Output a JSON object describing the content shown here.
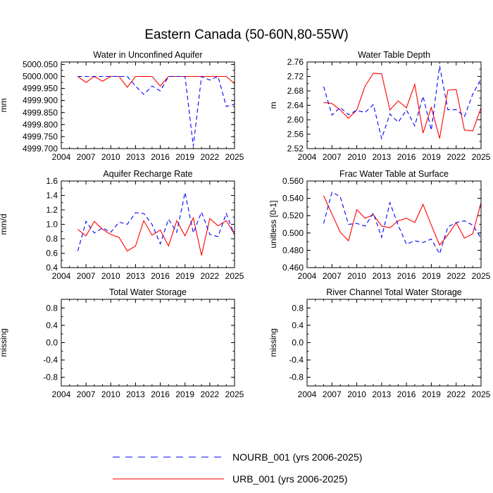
{
  "figure_title": "Eastern Canada (50-60N,80-55W)",
  "colors": {
    "urb": "#ff0000",
    "nourb": "#0000ff",
    "axis": "#000000"
  },
  "legend": [
    {
      "label": "NOURB_001 (yrs 2006-2025)",
      "style": "dashed",
      "color": "#0000ff"
    },
    {
      "label": "URB_001 (yrs 2006-2025)",
      "style": "solid",
      "color": "#ff0000"
    }
  ],
  "chart_data": [
    {
      "type": "line",
      "title": "Water in Unconfined Aquifer",
      "ylabel": "mm",
      "xlim": [
        2004,
        2025
      ],
      "ylim": [
        4999.7,
        5000.06
      ],
      "xticks": [
        "2004",
        "2007",
        "2010",
        "2013",
        "2016",
        "2019",
        "2022",
        "2025"
      ],
      "yticks": [
        "5000.050",
        "5000.000",
        "4999.950",
        "4999.900",
        "4999.850",
        "4999.800",
        "4999.750",
        "4999.700"
      ],
      "x": [
        2006,
        2007,
        2008,
        2009,
        2010,
        2011,
        2012,
        2013,
        2014,
        2015,
        2016,
        2017,
        2018,
        2019,
        2020,
        2021,
        2022,
        2023,
        2024,
        2025
      ],
      "series": [
        {
          "name": "URB_001",
          "values": [
            5000.0,
            4999.975,
            5000.0,
            4999.98,
            5000.0,
            5000.0,
            4999.955,
            5000.0,
            5000.0,
            5000.0,
            4999.96,
            5000.0,
            5000.0,
            5000.0,
            5000.0,
            5000.0,
            5000.0,
            5000.0,
            5000.0,
            4999.97
          ]
        },
        {
          "name": "NOURB_001",
          "values": [
            5000.0,
            5000.0,
            5000.0,
            5000.0,
            5000.0,
            5000.0,
            5000.0,
            4999.96,
            4999.925,
            4999.96,
            4999.94,
            5000.0,
            5000.0,
            5000.0,
            4999.71,
            5000.0,
            4999.985,
            5000.0,
            4999.875,
            4999.885
          ]
        }
      ]
    },
    {
      "type": "line",
      "title": "Water Table Depth",
      "ylabel": "m",
      "xlim": [
        2004,
        2025
      ],
      "ylim": [
        2.52,
        2.76
      ],
      "xticks": [
        "2004",
        "2007",
        "2010",
        "2013",
        "2016",
        "2019",
        "2022",
        "2025"
      ],
      "yticks": [
        "2.76",
        "2.72",
        "2.68",
        "2.64",
        "2.60",
        "2.56",
        "2.52"
      ],
      "x": [
        2006,
        2007,
        2008,
        2009,
        2010,
        2011,
        2012,
        2013,
        2014,
        2015,
        2016,
        2017,
        2018,
        2019,
        2020,
        2021,
        2022,
        2023,
        2024,
        2025
      ],
      "series": [
        {
          "name": "URB_001",
          "values": [
            2.648,
            2.645,
            2.627,
            2.604,
            2.627,
            2.693,
            2.729,
            2.727,
            2.627,
            2.652,
            2.633,
            2.698,
            2.563,
            2.634,
            2.548,
            2.682,
            2.684,
            2.571,
            2.569,
            2.633
          ]
        },
        {
          "name": "NOURB_001",
          "values": [
            2.692,
            2.613,
            2.634,
            2.614,
            2.626,
            2.62,
            2.642,
            2.548,
            2.616,
            2.593,
            2.627,
            2.583,
            2.665,
            2.571,
            2.749,
            2.628,
            2.628,
            2.609,
            2.671,
            2.713
          ]
        }
      ]
    },
    {
      "type": "line",
      "title": "Aquifer Recharge Rate",
      "ylabel": "mm/d",
      "xlim": [
        2004,
        2025
      ],
      "ylim": [
        0.4,
        1.6
      ],
      "xticks": [
        "2004",
        "2007",
        "2010",
        "2013",
        "2016",
        "2019",
        "2022",
        "2025"
      ],
      "yticks": [
        "1.6",
        "1.4",
        "1.2",
        "1.0",
        "0.8",
        "0.6",
        "0.4"
      ],
      "x": [
        2006,
        2007,
        2008,
        2009,
        2010,
        2011,
        2012,
        2013,
        2014,
        2015,
        2016,
        2017,
        2018,
        2019,
        2020,
        2021,
        2022,
        2023,
        2024,
        2025
      ],
      "series": [
        {
          "name": "URB_001",
          "values": [
            0.93,
            0.84,
            1.04,
            0.93,
            0.86,
            0.82,
            0.63,
            0.7,
            1.05,
            0.85,
            0.92,
            0.7,
            1.05,
            0.84,
            1.09,
            0.57,
            1.08,
            0.98,
            1.05,
            0.86
          ]
        },
        {
          "name": "NOURB_001",
          "values": [
            0.63,
            1.04,
            0.88,
            0.95,
            0.89,
            1.03,
            1.0,
            1.16,
            1.15,
            1.0,
            0.73,
            1.07,
            0.89,
            1.44,
            0.88,
            1.17,
            0.86,
            0.83,
            1.15,
            0.85
          ]
        }
      ]
    },
    {
      "type": "line",
      "title": "Frac Water Table at Surface",
      "ylabel": "unitless [0-1]",
      "xlim": [
        2004,
        2025
      ],
      "ylim": [
        0.46,
        0.56
      ],
      "xticks": [
        "2004",
        "2007",
        "2010",
        "2013",
        "2016",
        "2019",
        "2022",
        "2025"
      ],
      "yticks": [
        "0.560",
        "0.540",
        "0.520",
        "0.500",
        "0.480",
        "0.460"
      ],
      "x": [
        2006,
        2007,
        2008,
        2009,
        2010,
        2011,
        2012,
        2013,
        2014,
        2015,
        2016,
        2017,
        2018,
        2019,
        2020,
        2021,
        2022,
        2023,
        2024,
        2025
      ],
      "series": [
        {
          "name": "URB_001",
          "values": [
            0.543,
            0.522,
            0.501,
            0.491,
            0.527,
            0.517,
            0.521,
            0.508,
            0.506,
            0.514,
            0.517,
            0.512,
            0.533,
            0.509,
            0.486,
            0.498,
            0.512,
            0.494,
            0.499,
            0.535
          ]
        },
        {
          "name": "NOURB_001",
          "values": [
            0.511,
            0.547,
            0.542,
            0.51,
            0.511,
            0.508,
            0.523,
            0.495,
            0.535,
            0.509,
            0.487,
            0.491,
            0.489,
            0.493,
            0.476,
            0.507,
            0.512,
            0.514,
            0.509,
            0.494
          ]
        }
      ]
    },
    {
      "type": "line",
      "title": "Total Water Storage",
      "ylabel": "missing",
      "xlim": [
        2004,
        2025
      ],
      "ylim": [
        -1.0,
        1.0
      ],
      "xticks": [
        "2004",
        "2007",
        "2010",
        "2013",
        "2016",
        "2019",
        "2022",
        "2025"
      ],
      "yticks": [
        "0.8",
        "0.4",
        "0.0",
        "-0.4",
        "-0.8"
      ],
      "x": [],
      "series": []
    },
    {
      "type": "line",
      "title": "River Channel Total Water Storage",
      "ylabel": "missing",
      "xlim": [
        2004,
        2025
      ],
      "ylim": [
        -1.0,
        1.0
      ],
      "xticks": [
        "2004",
        "2007",
        "2010",
        "2013",
        "2016",
        "2019",
        "2022",
        "2025"
      ],
      "yticks": [
        "0.8",
        "0.4",
        "0.0",
        "-0.4",
        "-0.8"
      ],
      "x": [],
      "series": []
    }
  ]
}
